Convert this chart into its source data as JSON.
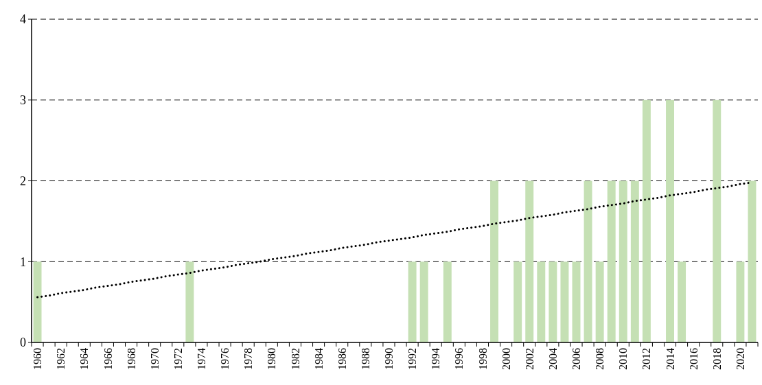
{
  "chart_data": {
    "type": "bar",
    "categories": [
      "1960",
      null,
      "1962",
      null,
      "1964",
      null,
      "1966",
      null,
      "1968",
      null,
      "1970",
      null,
      "1972",
      null,
      "1974",
      null,
      "1976",
      null,
      "1978",
      null,
      "1980",
      null,
      "1982",
      null,
      "1984",
      null,
      "1986",
      null,
      "1988",
      null,
      "1990",
      null,
      "1992",
      null,
      "1994",
      null,
      "1996",
      null,
      "1998",
      null,
      "2000",
      null,
      "2002",
      null,
      "2004",
      null,
      "2006",
      null,
      "2008",
      null,
      "2010",
      null,
      "2012",
      null,
      "2014",
      null,
      "2016",
      null,
      "2018",
      null,
      "2020",
      null
    ],
    "series": [
      {
        "color": "#c5e0b4",
        "values": [
          1,
          0,
          0,
          0,
          0,
          0,
          0,
          0,
          0,
          0,
          0,
          0,
          0,
          1,
          0,
          0,
          0,
          0,
          0,
          0,
          0,
          0,
          0,
          0,
          0,
          0,
          0,
          0,
          0,
          0,
          0,
          0,
          1,
          1,
          0,
          1,
          0,
          0,
          0,
          2,
          0,
          1,
          2,
          1,
          1,
          1,
          1,
          2,
          1,
          2,
          2,
          2,
          3,
          0,
          3,
          1,
          0,
          0,
          3,
          0,
          1,
          2
        ]
      },
      {
        "type": "line",
        "color": "#000000",
        "line_style": "dotted",
        "values": [
          0.56,
          0.58,
          0.61,
          0.63,
          0.65,
          0.68,
          0.7,
          0.72,
          0.75,
          0.77,
          0.79,
          0.82,
          0.84,
          0.86,
          0.89,
          0.91,
          0.93,
          0.96,
          0.98,
          1.0,
          1.03,
          1.05,
          1.07,
          1.1,
          1.12,
          1.14,
          1.17,
          1.19,
          1.21,
          1.24,
          1.26,
          1.28,
          1.3,
          1.33,
          1.35,
          1.37,
          1.4,
          1.42,
          1.44,
          1.47,
          1.49,
          1.51,
          1.54,
          1.56,
          1.58,
          1.61,
          1.63,
          1.65,
          1.68,
          1.7,
          1.72,
          1.75,
          1.77,
          1.79,
          1.82,
          1.84,
          1.86,
          1.89,
          1.91,
          1.93,
          1.96,
          1.98
        ]
      }
    ],
    "ylim": [
      0,
      4
    ],
    "yticks": [
      0,
      1,
      2,
      3,
      4
    ],
    "grid": "y"
  }
}
